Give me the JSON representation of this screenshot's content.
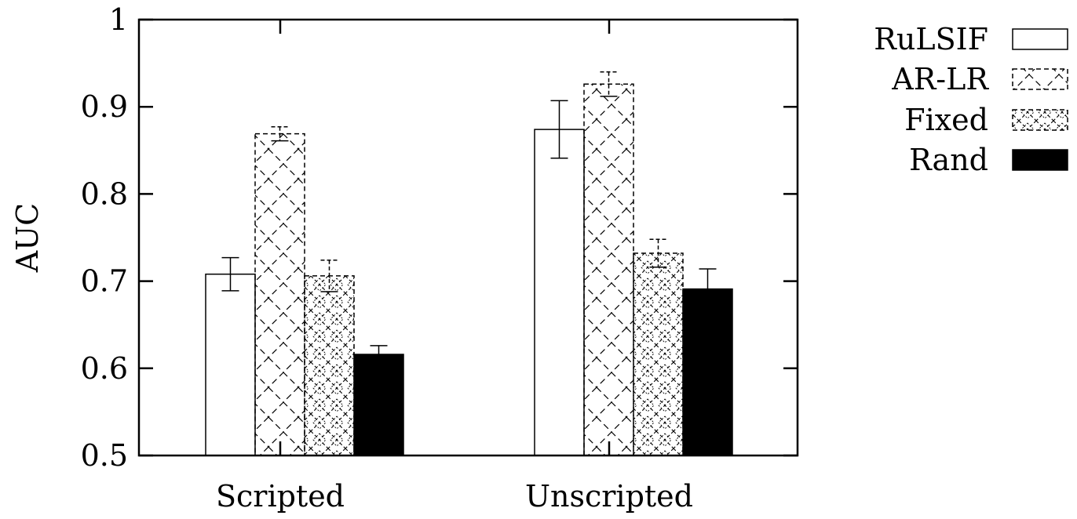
{
  "chart_data": {
    "type": "bar",
    "title": "",
    "xlabel": "",
    "ylabel": "AUC",
    "ylim": [
      0.5,
      1.0
    ],
    "yticks": [
      "0.5",
      "0.6",
      "0.7",
      "0.8",
      "0.9",
      "1"
    ],
    "categories": [
      "Scripted",
      "Unscripted"
    ],
    "legend": "top-right, outside plot",
    "grid": false,
    "series": [
      {
        "name": "RuLSIF",
        "values": [
          0.708,
          0.874
        ],
        "errors": [
          0.019,
          0.033
        ],
        "fill": "white"
      },
      {
        "name": "AR-LR",
        "values": [
          0.869,
          0.926
        ],
        "errors": [
          0.008,
          0.014
        ],
        "fill": "cross-hatch-large"
      },
      {
        "name": "Fixed",
        "values": [
          0.706,
          0.732
        ],
        "errors": [
          0.018,
          0.016
        ],
        "fill": "cross-hatch-dense"
      },
      {
        "name": "Rand",
        "values": [
          0.616,
          0.691
        ],
        "errors": [
          0.01,
          0.023
        ],
        "fill": "black"
      }
    ]
  }
}
